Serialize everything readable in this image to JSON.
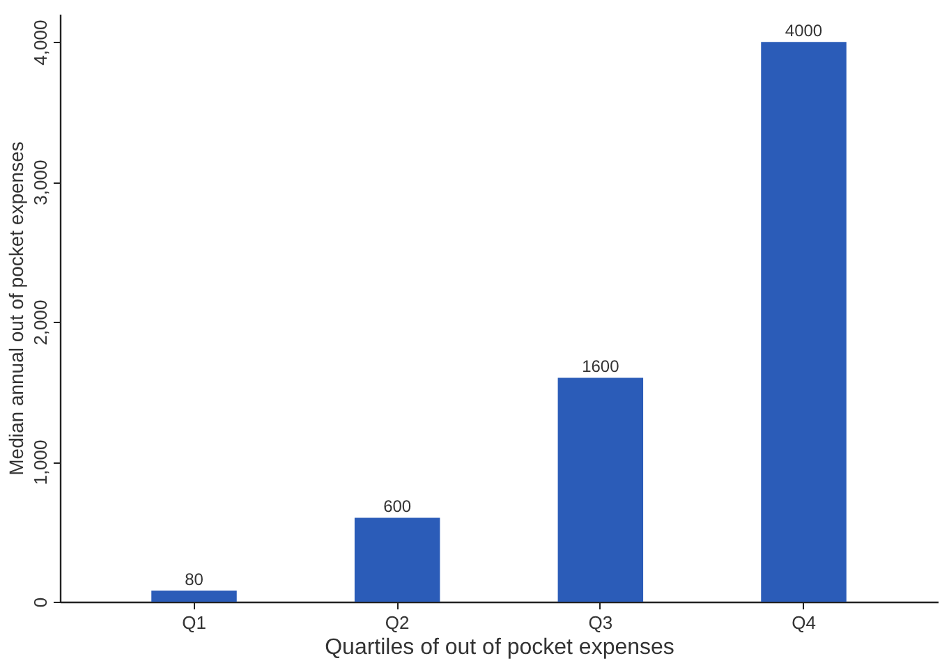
{
  "chart_data": {
    "type": "bar",
    "xlabel": "Quartiles of out of pocket expenses",
    "ylabel": "Median annual out of pocket expenses",
    "categories": [
      "Q1",
      "Q2",
      "Q3",
      "Q4"
    ],
    "values": [
      80,
      600,
      1600,
      4000
    ],
    "color": "#2b5cb8",
    "ylim": [
      0,
      4200
    ],
    "yticks": [
      0,
      {
        "value": 1000,
        "label": "1,000"
      },
      {
        "value": 2000,
        "label": "2,000"
      },
      {
        "value": 3000,
        "label": "3,000"
      },
      {
        "value": 4000,
        "label": "4,000"
      }
    ],
    "grid": false,
    "data_labels": true
  }
}
